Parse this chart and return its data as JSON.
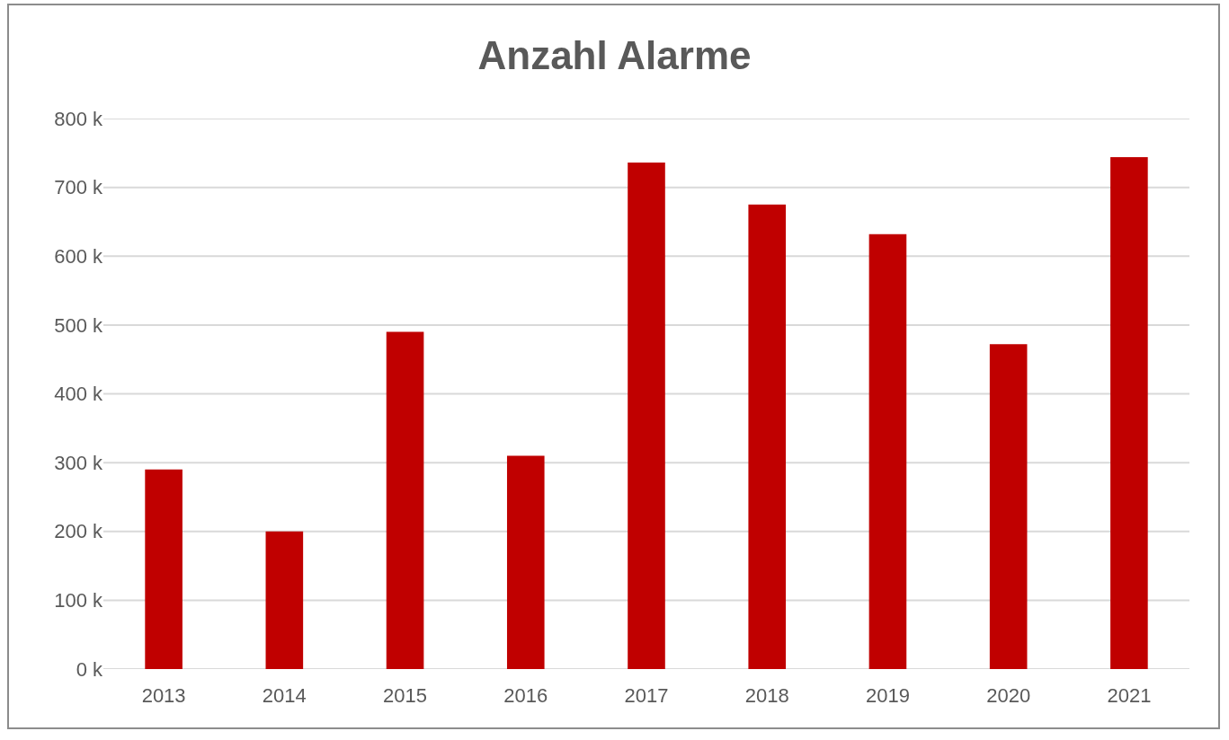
{
  "chart_data": {
    "type": "bar",
    "title": "Anzahl Alarme",
    "categories": [
      "2013",
      "2014",
      "2015",
      "2016",
      "2017",
      "2018",
      "2019",
      "2020",
      "2021"
    ],
    "values": [
      290,
      200,
      490,
      310,
      736,
      675,
      632,
      472,
      744
    ],
    "color": "#c00000",
    "ylim": [
      0,
      800
    ],
    "yticks": [
      {
        "value": 0,
        "label": "0 k"
      },
      {
        "value": 100,
        "label": "100 k"
      },
      {
        "value": 200,
        "label": "200 k"
      },
      {
        "value": 300,
        "label": "300 k"
      },
      {
        "value": 400,
        "label": "400 k"
      },
      {
        "value": 500,
        "label": "500 k"
      },
      {
        "value": 600,
        "label": "600 k"
      },
      {
        "value": 700,
        "label": "700 k"
      },
      {
        "value": 800,
        "label": "800 k"
      }
    ],
    "grid": "y"
  }
}
